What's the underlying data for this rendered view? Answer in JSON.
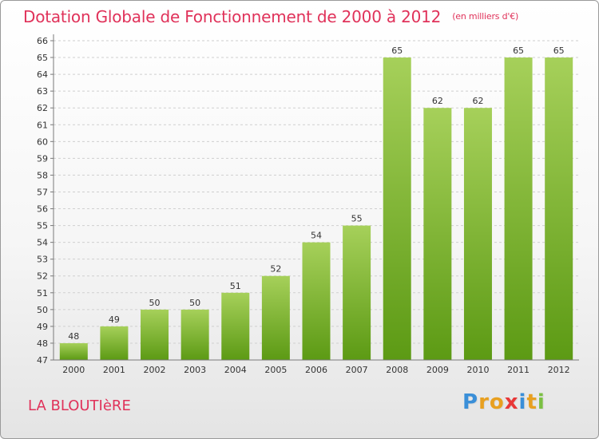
{
  "header": {
    "title": "Dotation Globale de Fonctionnement de 2000 à 2012",
    "subtitle": "(en milliers d'€)"
  },
  "footer": {
    "commune": "LA BLOUTIèRE",
    "logo_letters": [
      "P",
      "r",
      "o",
      "x",
      "i",
      "t",
      "i"
    ],
    "logo_colors": [
      "#3a8fd8",
      "#e8a020",
      "#e8a020",
      "#e83838",
      "#3a8fd8",
      "#e8a020",
      "#7bc043"
    ]
  },
  "colors": {
    "bar_top": "#a6d05a",
    "bar_bottom": "#5c9a14",
    "grid": "#cfcfcf",
    "axis": "#7a7a7a"
  },
  "chart_data": {
    "type": "bar",
    "categories": [
      "2000",
      "2001",
      "2002",
      "2003",
      "2004",
      "2005",
      "2006",
      "2007",
      "2008",
      "2009",
      "2010",
      "2011",
      "2012"
    ],
    "values": [
      48,
      49,
      50,
      50,
      51,
      52,
      54,
      55,
      65,
      62,
      62,
      65,
      65
    ],
    "title": "Dotation Globale de Fonctionnement de 2000 à 2012",
    "subtitle": "(en milliers d'€)",
    "xlabel": "",
    "ylabel": "",
    "ylim": [
      47,
      66
    ],
    "yticks": [
      47,
      48,
      49,
      50,
      51,
      52,
      53,
      54,
      55,
      56,
      57,
      58,
      59,
      60,
      61,
      62,
      63,
      64,
      65,
      66
    ],
    "grid": true,
    "legend": "none"
  }
}
